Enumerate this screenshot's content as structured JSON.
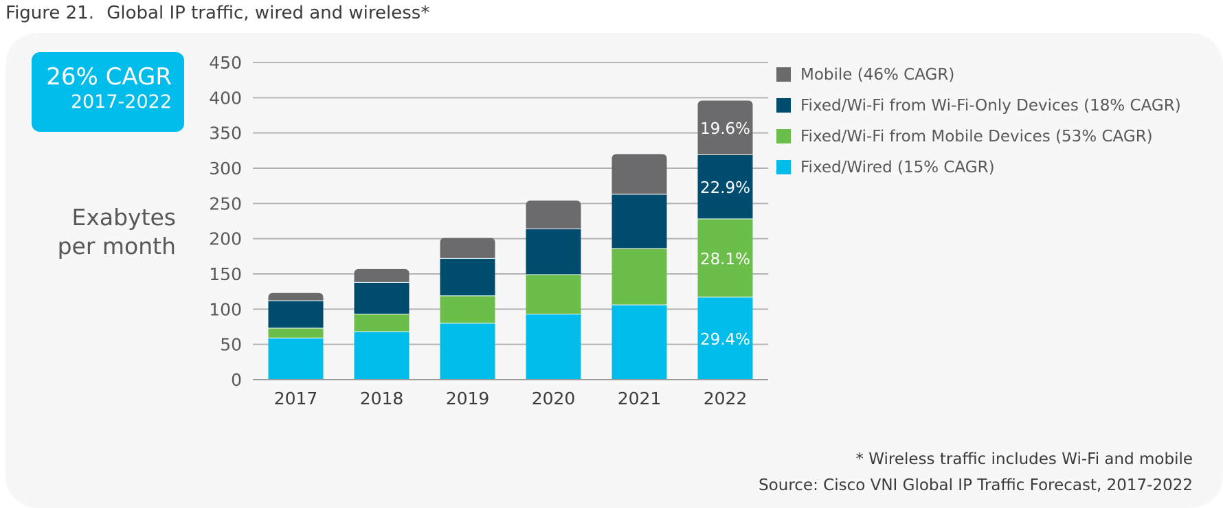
{
  "figure": {
    "number": "Figure 21.",
    "title": "Global IP traffic, wired and wireless*"
  },
  "cagr_badge": {
    "value": "26% CAGR",
    "range": "2017-2022",
    "color": "#00bceb"
  },
  "footnotes": {
    "wireless": "* Wireless traffic includes Wi-Fi and mobile",
    "source": "Source: Cisco VNI Global IP Traffic Forecast, 2017-2022"
  },
  "chart_data": {
    "type": "bar",
    "stacked": true,
    "ylabel_lines": [
      "Exabytes",
      "per month"
    ],
    "ylim": [
      0,
      450
    ],
    "yticks": [
      0,
      50,
      100,
      150,
      200,
      250,
      300,
      350,
      400,
      450
    ],
    "grid": true,
    "legend_position": "right",
    "categories": [
      "2017",
      "2018",
      "2019",
      "2020",
      "2021",
      "2022"
    ],
    "series": [
      {
        "name": "Fixed/Wired (15% CAGR)",
        "color": "#00bceb",
        "values": [
          59,
          68,
          80,
          93,
          106,
          117
        ],
        "labels": [
          "",
          "",
          "",
          "",
          "",
          "29.4%"
        ]
      },
      {
        "name": "Fixed/Wi-Fi from Mobile Devices (53% CAGR)",
        "color": "#6cbe4a",
        "values": [
          14,
          25,
          39,
          56,
          80,
          111
        ],
        "labels": [
          "",
          "",
          "",
          "",
          "",
          "28.1%"
        ]
      },
      {
        "name": "Fixed/Wi-Fi from Wi-Fi-Only Devices (18% CAGR)",
        "color": "#004c6e",
        "values": [
          39,
          45,
          53,
          65,
          77,
          91
        ],
        "labels": [
          "",
          "",
          "",
          "",
          "",
          "22.9%"
        ]
      },
      {
        "name": "Mobile (46% CAGR)",
        "color": "#6b6b6d",
        "values": [
          11,
          19,
          29,
          40,
          57,
          77
        ],
        "labels": [
          "",
          "",
          "",
          "",
          "",
          "19.6%"
        ]
      }
    ],
    "legend_order": [
      3,
      2,
      1,
      0
    ]
  }
}
